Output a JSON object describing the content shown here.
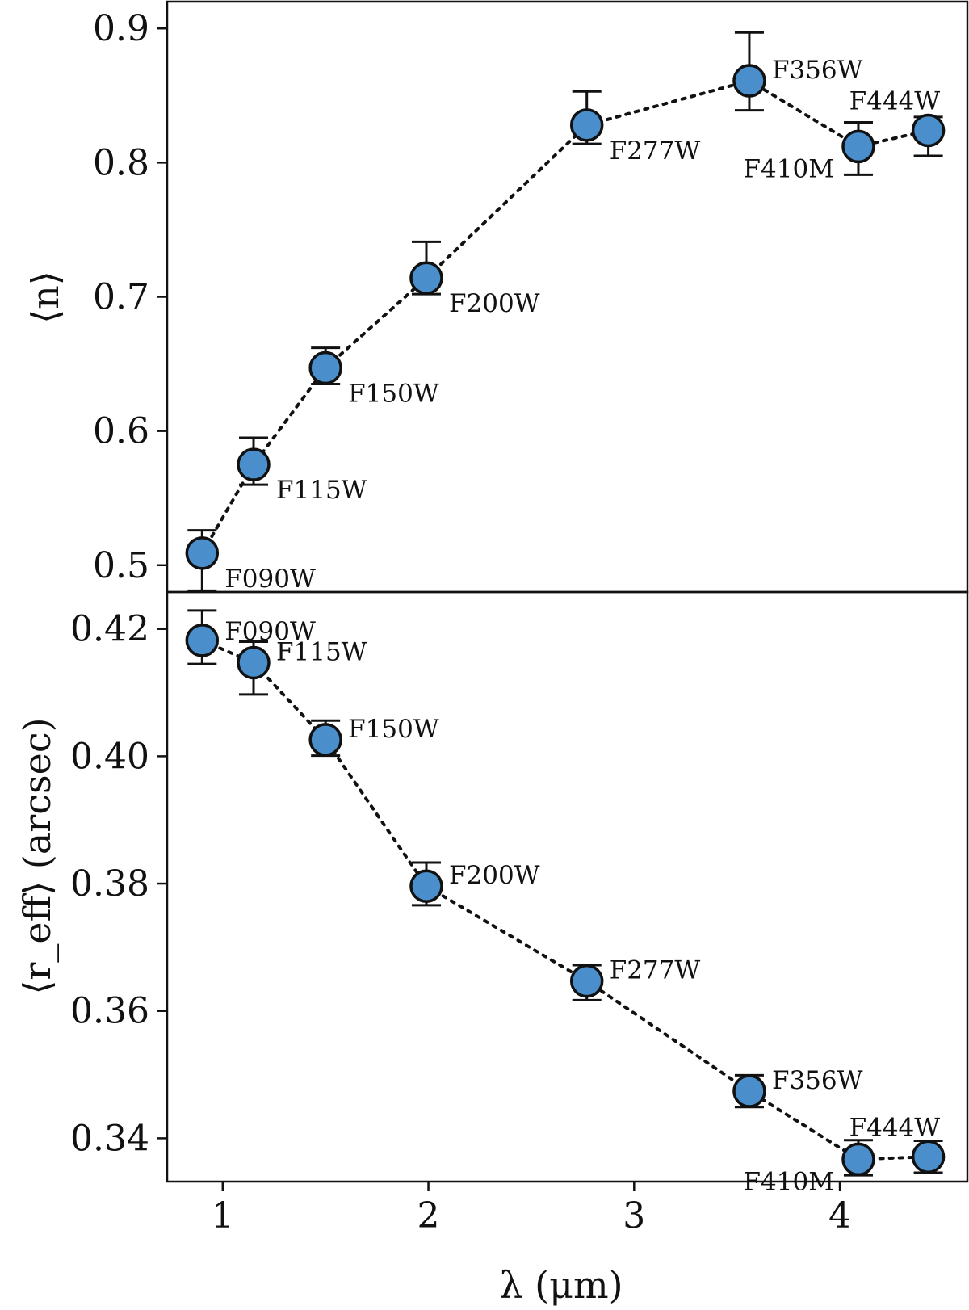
{
  "colors": {
    "marker": "#4a8fcb",
    "line": "#111111"
  },
  "xaxis": {
    "label": "λ (μm)",
    "xlim": [
      0.73,
      4.62
    ],
    "ticks": [
      1,
      2,
      3,
      4
    ],
    "tick_labels": [
      "1",
      "2",
      "3",
      "4"
    ]
  },
  "chart_data": [
    {
      "type": "scatter",
      "name": "sersic-index",
      "ylabel": "⟨n⟩",
      "ylim": [
        0.48,
        0.92
      ],
      "yticks": [
        0.5,
        0.6,
        0.7,
        0.8,
        0.9
      ],
      "ytick_labels": [
        "0.5",
        "0.6",
        "0.7",
        "0.8",
        "0.9"
      ],
      "points": [
        {
          "filter": "F090W",
          "x": 0.9,
          "y": 0.509,
          "err_low": 0.028,
          "err_high": 0.017,
          "label_pos": "below-right"
        },
        {
          "filter": "F115W",
          "x": 1.15,
          "y": 0.575,
          "err_low": 0.015,
          "err_high": 0.02,
          "label_pos": "below-right"
        },
        {
          "filter": "F150W",
          "x": 1.5,
          "y": 0.647,
          "err_low": 0.012,
          "err_high": 0.015,
          "label_pos": "below-right"
        },
        {
          "filter": "F200W",
          "x": 1.99,
          "y": 0.714,
          "err_low": 0.012,
          "err_high": 0.027,
          "label_pos": "below-right"
        },
        {
          "filter": "F277W",
          "x": 2.77,
          "y": 0.828,
          "err_low": 0.014,
          "err_high": 0.025,
          "label_pos": "below-right"
        },
        {
          "filter": "F356W",
          "x": 3.56,
          "y": 0.861,
          "err_low": 0.022,
          "err_high": 0.036,
          "label_pos": "above-right"
        },
        {
          "filter": "F410M",
          "x": 4.09,
          "y": 0.812,
          "err_low": 0.021,
          "err_high": 0.018,
          "label_pos": "below-left"
        },
        {
          "filter": "F444W",
          "x": 4.43,
          "y": 0.824,
          "err_low": 0.019,
          "err_high": 0.01,
          "label_pos": "above"
        }
      ]
    },
    {
      "type": "scatter",
      "name": "effective-radius",
      "ylabel": "⟨r_eff⟩ (arcsec)",
      "ylim": [
        0.3332,
        0.4258
      ],
      "yticks": [
        0.34,
        0.36,
        0.38,
        0.4,
        0.42
      ],
      "ytick_labels": [
        "0.34",
        "0.36",
        "0.38",
        "0.40",
        "0.42"
      ],
      "points": [
        {
          "filter": "F090W",
          "x": 0.9,
          "y": 0.4182,
          "err_low": 0.0037,
          "err_high": 0.0047,
          "label_pos": "right"
        },
        {
          "filter": "F115W",
          "x": 1.15,
          "y": 0.4147,
          "err_low": 0.005,
          "err_high": 0.0033,
          "label_pos": "above-right"
        },
        {
          "filter": "F150W",
          "x": 1.5,
          "y": 0.4026,
          "err_low": 0.0025,
          "err_high": 0.003,
          "label_pos": "above-right"
        },
        {
          "filter": "F200W",
          "x": 1.99,
          "y": 0.3796,
          "err_low": 0.003,
          "err_high": 0.0037,
          "label_pos": "above-right"
        },
        {
          "filter": "F277W",
          "x": 2.77,
          "y": 0.3647,
          "err_low": 0.003,
          "err_high": 0.0025,
          "label_pos": "above-right"
        },
        {
          "filter": "F356W",
          "x": 3.56,
          "y": 0.3474,
          "err_low": 0.0025,
          "err_high": 0.0025,
          "label_pos": "above-right"
        },
        {
          "filter": "F410M",
          "x": 4.09,
          "y": 0.3367,
          "err_low": 0.0025,
          "err_high": 0.003,
          "label_pos": "below-left"
        },
        {
          "filter": "F444W",
          "x": 4.43,
          "y": 0.3371,
          "err_low": 0.0025,
          "err_high": 0.0025,
          "label_pos": "above"
        }
      ]
    }
  ]
}
